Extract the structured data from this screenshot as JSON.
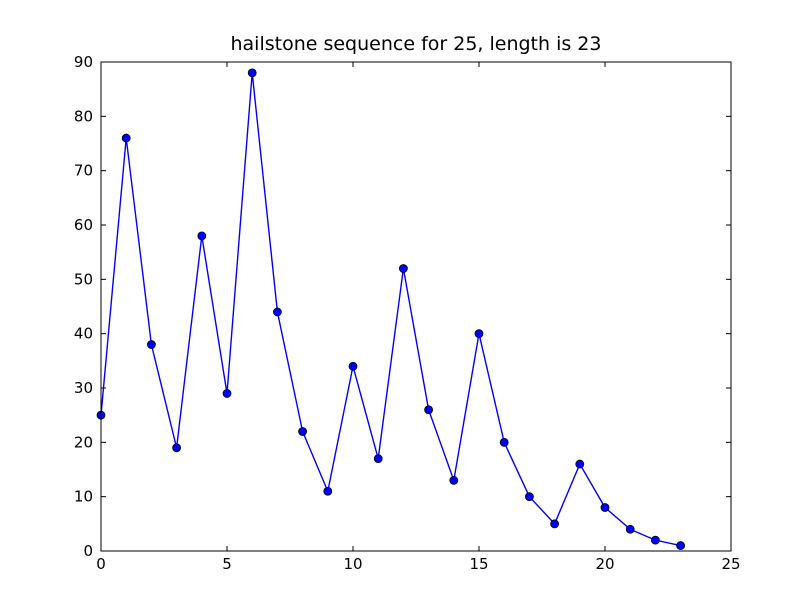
{
  "chart_data": {
    "type": "line",
    "title": "hailstone sequence for 25, length is 23",
    "xlabel": "",
    "ylabel": "",
    "xlim": [
      0,
      25
    ],
    "ylim": [
      0,
      90
    ],
    "xticks": [
      0,
      5,
      10,
      15,
      20,
      25
    ],
    "yticks": [
      0,
      10,
      20,
      30,
      40,
      50,
      60,
      70,
      80,
      90
    ],
    "grid": false,
    "legend": "none",
    "series": [
      {
        "color": "#0000ff",
        "marker": "circle",
        "x": [
          0,
          1,
          2,
          3,
          4,
          5,
          6,
          7,
          8,
          9,
          10,
          11,
          12,
          13,
          14,
          15,
          16,
          17,
          18,
          19,
          20,
          21,
          22,
          23
        ],
        "y": [
          25,
          76,
          38,
          19,
          58,
          29,
          88,
          44,
          22,
          11,
          34,
          17,
          52,
          26,
          13,
          40,
          20,
          10,
          5,
          16,
          8,
          4,
          2,
          1
        ]
      }
    ]
  }
}
